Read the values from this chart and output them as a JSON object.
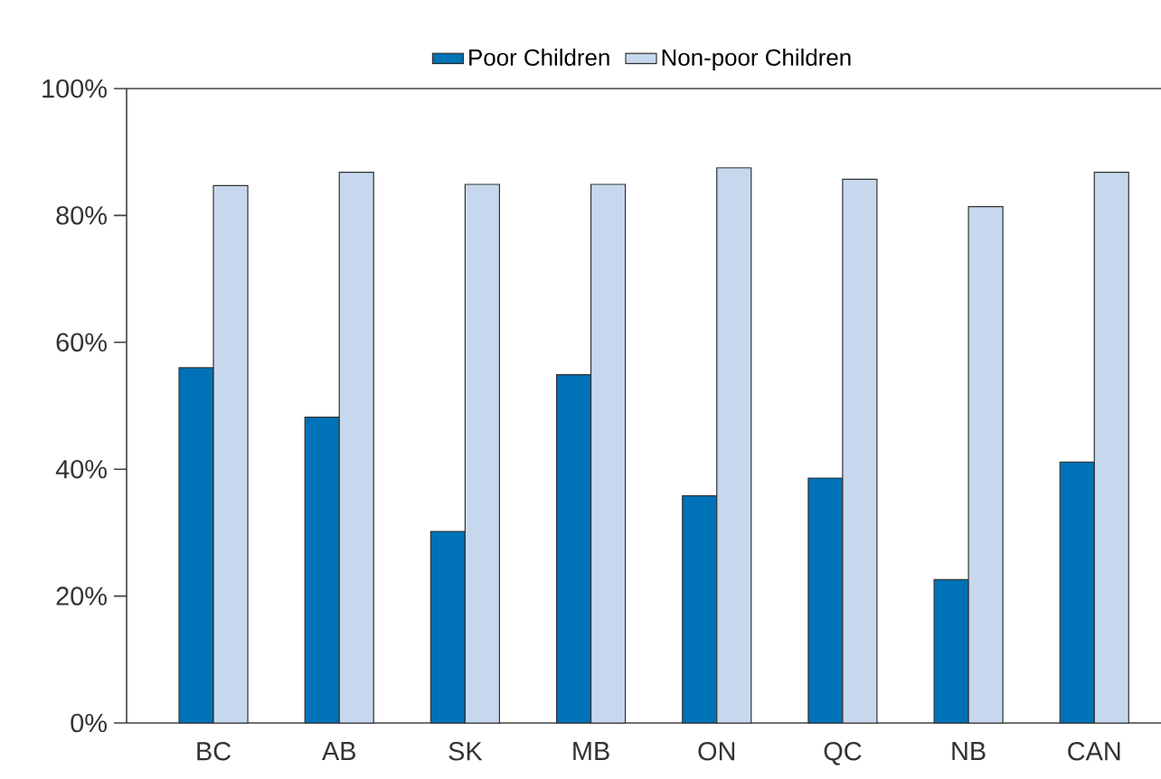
{
  "chart_data": {
    "type": "bar",
    "categories": [
      "BC",
      "AB",
      "SK",
      "MB",
      "ON",
      "QC",
      "NB",
      "CAN"
    ],
    "series": [
      {
        "name": "Poor Children",
        "color": "#0072b7",
        "values": [
          56.0,
          48.2,
          30.2,
          54.9,
          35.8,
          38.6,
          22.6,
          41.1
        ]
      },
      {
        "name": "Non-poor Children",
        "color": "#c7d8ee",
        "values": [
          84.7,
          86.8,
          84.9,
          84.9,
          87.5,
          85.7,
          81.4,
          86.8
        ]
      }
    ],
    "ylim": [
      0,
      100
    ],
    "yticks": [
      {
        "value": 0,
        "label": "0%"
      },
      {
        "value": 20,
        "label": "20%"
      },
      {
        "value": 40,
        "label": "40%"
      },
      {
        "value": 60,
        "label": "60%"
      },
      {
        "value": 80,
        "label": "80%"
      },
      {
        "value": 100,
        "label": "100%"
      }
    ],
    "grid": false,
    "legend": "top"
  }
}
